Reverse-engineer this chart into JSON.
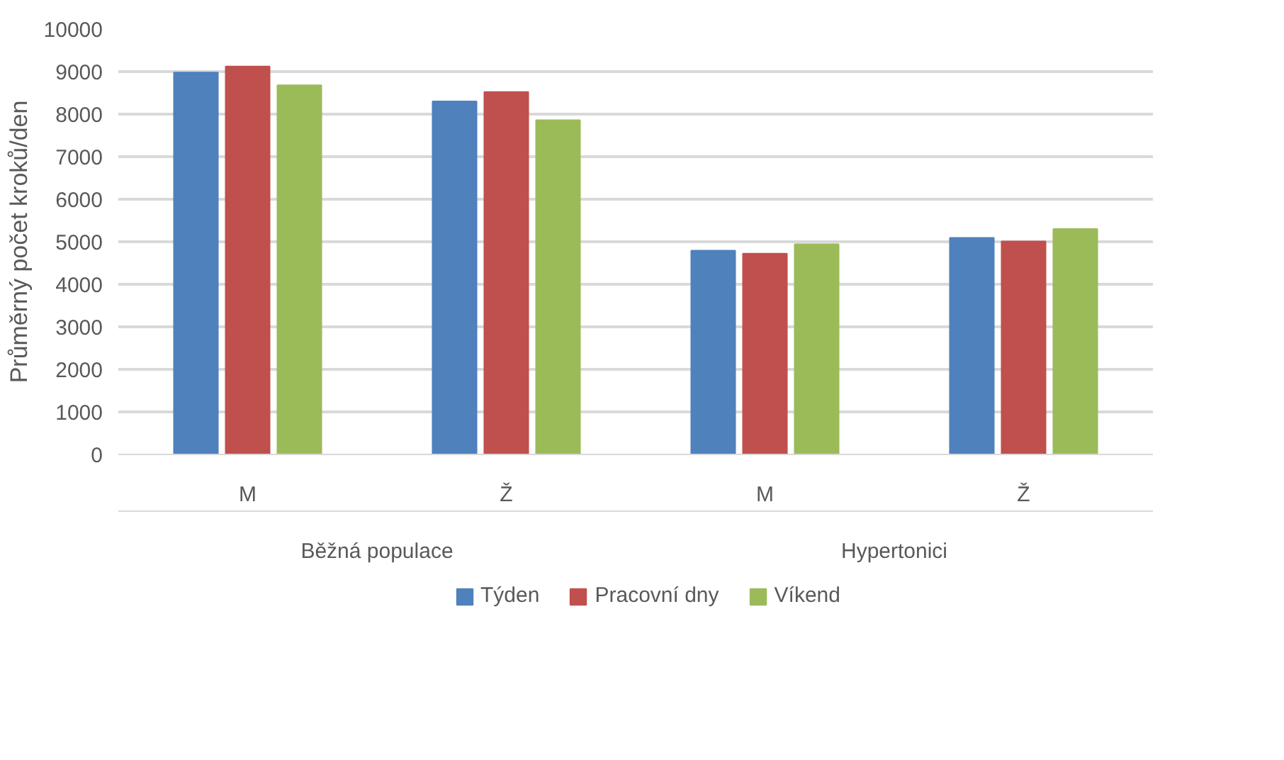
{
  "chart_data": {
    "type": "bar",
    "ylabel": "Průměrný počet kroků/den",
    "categories": [
      "M",
      "Ž",
      "M",
      "Ž"
    ],
    "annotations": [
      "Běžná populace",
      "Hypertonici"
    ],
    "series": [
      {
        "name": "Týden",
        "color": "#4f81bd",
        "values": [
          8980,
          8300,
          4790,
          5090
        ]
      },
      {
        "name": "Pracovní dny",
        "color": "#c0504d",
        "values": [
          9120,
          8520,
          4720,
          5010
        ]
      },
      {
        "name": "Víkend",
        "color": "#9bbb59",
        "values": [
          8680,
          7860,
          4940,
          5300
        ]
      }
    ],
    "ylim": [
      0,
      10000
    ],
    "yticks": [
      0,
      1000,
      2000,
      3000,
      4000,
      5000,
      6000,
      7000,
      8000,
      9000,
      10000
    ],
    "grid": "y",
    "legend": "bottom"
  }
}
